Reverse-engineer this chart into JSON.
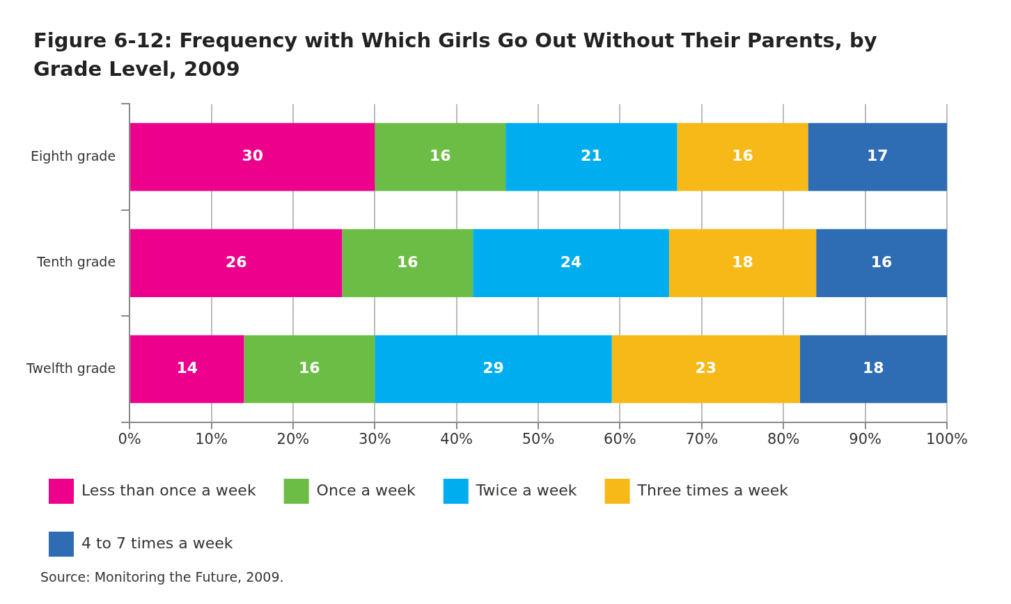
{
  "chart_data": {
    "type": "bar",
    "orientation": "horizontal",
    "stacked": true,
    "title": "Figure 6-12: Frequency with Which Girls Go Out Without Their Parents, by Grade Level, 2009",
    "categories": [
      "Eighth grade",
      "Tenth grade",
      "Twelfth grade"
    ],
    "series": [
      {
        "name": "Less than once a week",
        "color": "#ec008c",
        "values": [
          30,
          26,
          14
        ]
      },
      {
        "name": "Once a week",
        "color": "#6cbd45",
        "values": [
          16,
          16,
          16
        ]
      },
      {
        "name": "Twice a week",
        "color": "#00aeef",
        "values": [
          21,
          24,
          29
        ]
      },
      {
        "name": "Three times a week",
        "color": "#f7b918",
        "values": [
          16,
          18,
          23
        ]
      },
      {
        "name": "4 to 7 times a week",
        "color": "#2e6db4",
        "values": [
          17,
          16,
          18
        ]
      }
    ],
    "xlim": [
      0,
      100
    ],
    "xticks": [
      {
        "value": 0,
        "label": "0%"
      },
      {
        "value": 10,
        "label": "10%"
      },
      {
        "value": 20,
        "label": "20%"
      },
      {
        "value": 30,
        "label": "30%"
      },
      {
        "value": 40,
        "label": "40%"
      },
      {
        "value": 50,
        "label": "50%"
      },
      {
        "value": 60,
        "label": "60%"
      },
      {
        "value": 70,
        "label": "70%"
      },
      {
        "value": 80,
        "label": "80%"
      },
      {
        "value": 90,
        "label": "90%"
      },
      {
        "value": 100,
        "label": "100%"
      }
    ],
    "grid": "x",
    "legend": "bottom",
    "data_labels": true,
    "annotations": [
      "Source: Monitoring the Future, 2009."
    ]
  }
}
